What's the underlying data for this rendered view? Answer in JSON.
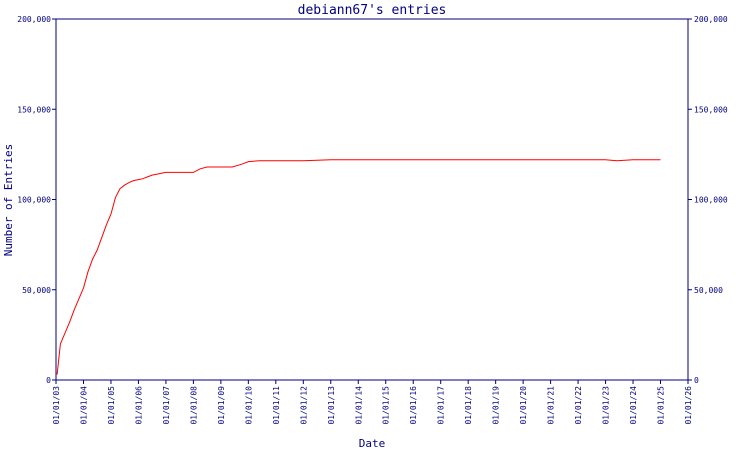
{
  "chart_data": {
    "type": "line",
    "title": "debiann67's entries",
    "xlabel": "Date",
    "ylabel": "Number of Entries",
    "x_ticks": [
      "01/01/03",
      "01/01/04",
      "01/01/05",
      "01/01/06",
      "01/01/07",
      "01/01/08",
      "01/01/09",
      "01/01/10",
      "01/01/11",
      "01/01/12",
      "01/01/13",
      "01/01/14",
      "01/01/15",
      "01/01/16",
      "01/01/17",
      "01/01/18",
      "01/01/19",
      "01/01/20",
      "01/01/21",
      "01/01/22",
      "01/01/23",
      "01/01/24",
      "01/01/25",
      "01/01/26"
    ],
    "y_ticks": [
      "0",
      "50,000",
      "100,000",
      "150,000",
      "200,000"
    ],
    "ylim": [
      0,
      200000
    ],
    "xlim": [
      "2003-01-01",
      "2026-01-01"
    ],
    "grid": false,
    "colors": {
      "axis": "#000080",
      "line": "#ff0000"
    },
    "series": [
      {
        "x": [
          "2003-01-15",
          "2003-03-01",
          "2003-05-01",
          "2003-07-01",
          "2003-09-01",
          "2003-11-01",
          "2004-01-01",
          "2004-03-01",
          "2004-05-01",
          "2004-07-01",
          "2004-09-01",
          "2004-11-01",
          "2005-01-01",
          "2005-03-01",
          "2005-05-01",
          "2005-07-01",
          "2005-09-01",
          "2005-11-01",
          "2006-01-01",
          "2006-03-01",
          "2006-05-01",
          "2006-07-01",
          "2006-09-01",
          "2006-11-01",
          "2007-01-01",
          "2007-04-01",
          "2007-07-01",
          "2007-10-01",
          "2008-01-01",
          "2008-04-01",
          "2008-07-01",
          "2009-01-01",
          "2009-06-01",
          "2009-10-01",
          "2010-01-01",
          "2010-06-01",
          "2011-01-01",
          "2012-01-01",
          "2013-01-01",
          "2014-01-01",
          "2015-01-01",
          "2016-01-01",
          "2017-01-01",
          "2018-01-01",
          "2019-01-01",
          "2020-01-01",
          "2021-01-01",
          "2022-01-01",
          "2023-01-01",
          "2023-06-01",
          "2024-01-01",
          "2025-01-01"
        ],
        "y": [
          3000,
          20000,
          26000,
          32000,
          39000,
          45000,
          51000,
          60000,
          67000,
          72000,
          79000,
          86000,
          92000,
          101000,
          106000,
          108000,
          109500,
          110500,
          111000,
          111500,
          112500,
          113500,
          114000,
          114500,
          115000,
          115000,
          115000,
          115000,
          115000,
          117000,
          118000,
          118000,
          118000,
          119500,
          121000,
          121500,
          121500,
          121500,
          122000,
          122000,
          122000,
          122000,
          122000,
          122000,
          122000,
          122000,
          122000,
          122000,
          122000,
          121500,
          122000,
          122000
        ]
      }
    ]
  }
}
